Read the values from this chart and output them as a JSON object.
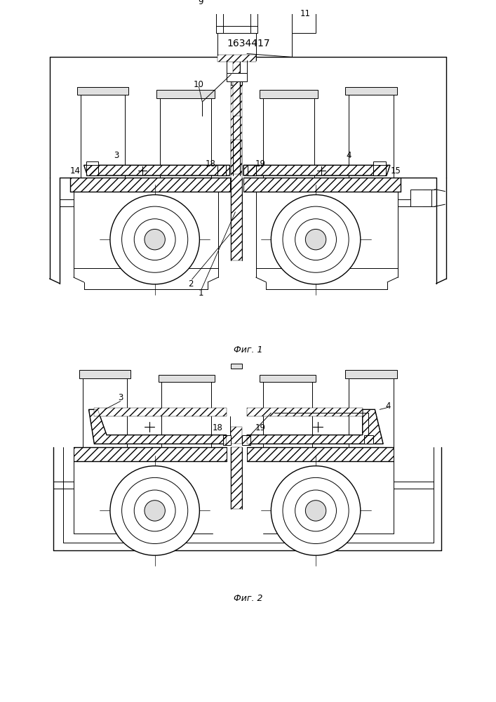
{
  "title": "1634417",
  "fig1_label": "Фиг. 1",
  "fig2_label": "Фиг. 2",
  "bg_color": "#ffffff",
  "line_color": "#000000",
  "title_fontsize": 10,
  "label_fontsize": 9,
  "annot_fontsize": 8.5
}
